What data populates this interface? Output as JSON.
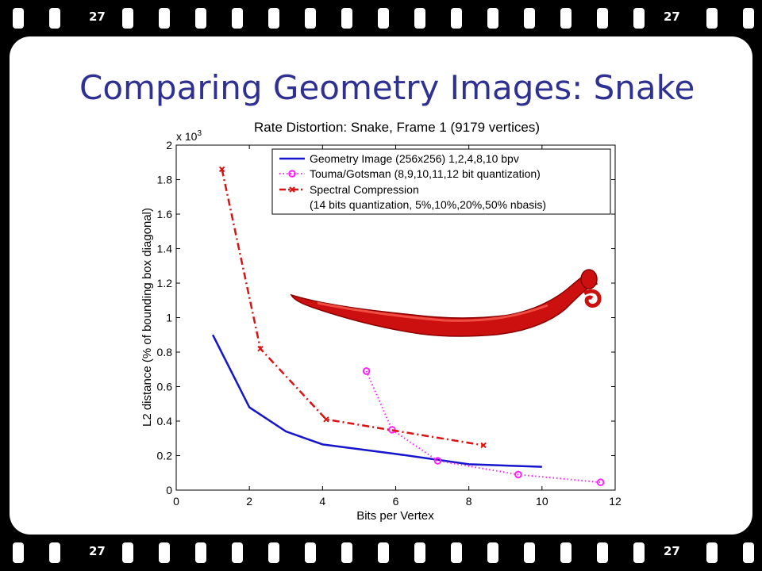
{
  "slide": {
    "title": "Comparing Geometry Images: Snake",
    "frame_number": "27"
  },
  "colors": {
    "title": "#2e3192",
    "geometry_image": "#1515cc",
    "touma_gotsman": "#ff22ff",
    "spectral": "#dd1111",
    "snake": "#cc1010"
  },
  "chart_data": {
    "type": "line",
    "title": "Rate Distortion: Snake, Frame 1 (9179 vertices)",
    "xlabel": "Bits per Vertex",
    "ylabel": "L2 distance (% of bounding box diagonal)",
    "y_multiplier": "x 10",
    "y_multiplier_exp": "3",
    "xlim": [
      0,
      12
    ],
    "ylim": [
      0,
      2
    ],
    "x_ticks": [
      "0",
      "2",
      "4",
      "6",
      "8",
      "10",
      "12"
    ],
    "y_ticks": [
      "0",
      "0.2",
      "0.4",
      "0.6",
      "0.8",
      "1",
      "1.2",
      "1.4",
      "1.6",
      "1.8",
      "2"
    ],
    "grid": false,
    "legend_position": "top-right",
    "series": [
      {
        "name": "Geometry Image (256x256) 1,2,4,8,10 bpv",
        "style": "solid",
        "marker": "none",
        "x": [
          1,
          2,
          3,
          4,
          6,
          8,
          10
        ],
        "y": [
          0.9,
          0.48,
          0.34,
          0.265,
          0.21,
          0.15,
          0.135
        ]
      },
      {
        "name": "Touma/Gotsman (8,9,10,11,12 bit quantization)",
        "style": "dotted",
        "marker": "circle",
        "x": [
          5.2,
          5.9,
          7.15,
          9.35,
          11.6
        ],
        "y": [
          0.69,
          0.35,
          0.17,
          0.09,
          0.045
        ]
      },
      {
        "name": "Spectral Compression",
        "name_line2": "(14 bits quantization, 5%,10%,20%,50% nbasis)",
        "style": "dashdot",
        "marker": "x",
        "x": [
          1.25,
          2.3,
          4.1,
          8.4
        ],
        "y": [
          1.86,
          0.82,
          0.41,
          0.26
        ]
      }
    ]
  }
}
